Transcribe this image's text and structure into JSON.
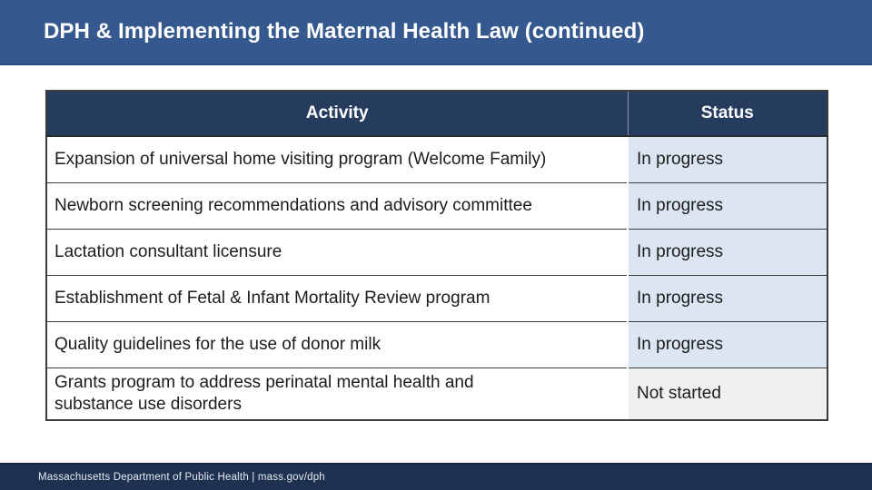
{
  "slide": {
    "title": "DPH & Implementing the Maternal Health Law (continued)",
    "footer_text": "Massachusetts Department of Public Health | mass.gov/dph"
  },
  "table": {
    "columns": [
      "Activity",
      "Status"
    ],
    "rows": [
      {
        "activity": "Expansion of universal home visiting program (Welcome Family)",
        "status": "In progress",
        "status_key": "in-progress"
      },
      {
        "activity": "Newborn screening recommendations and advisory committee",
        "status": "In progress",
        "status_key": "in-progress"
      },
      {
        "activity": "Lactation consultant licensure",
        "status": "In progress",
        "status_key": "in-progress"
      },
      {
        "activity": "Establishment of Fetal & Infant Mortality Review program",
        "status": "In progress",
        "status_key": "in-progress"
      },
      {
        "activity": "Quality guidelines for the use of donor milk",
        "status": "In progress",
        "status_key": "in-progress"
      },
      {
        "activity": "Grants program to address perinatal mental health and\nsubstance use disorders",
        "status": "Not started",
        "status_key": "not-started"
      }
    ]
  },
  "colors": {
    "title_bar_bg": "#35598E",
    "table_header_bg": "#263C5E",
    "status_in_progress_bg": "#DCE5F2",
    "status_not_started_bg": "#F0F0F0",
    "footer_bg": "#1F3150"
  }
}
